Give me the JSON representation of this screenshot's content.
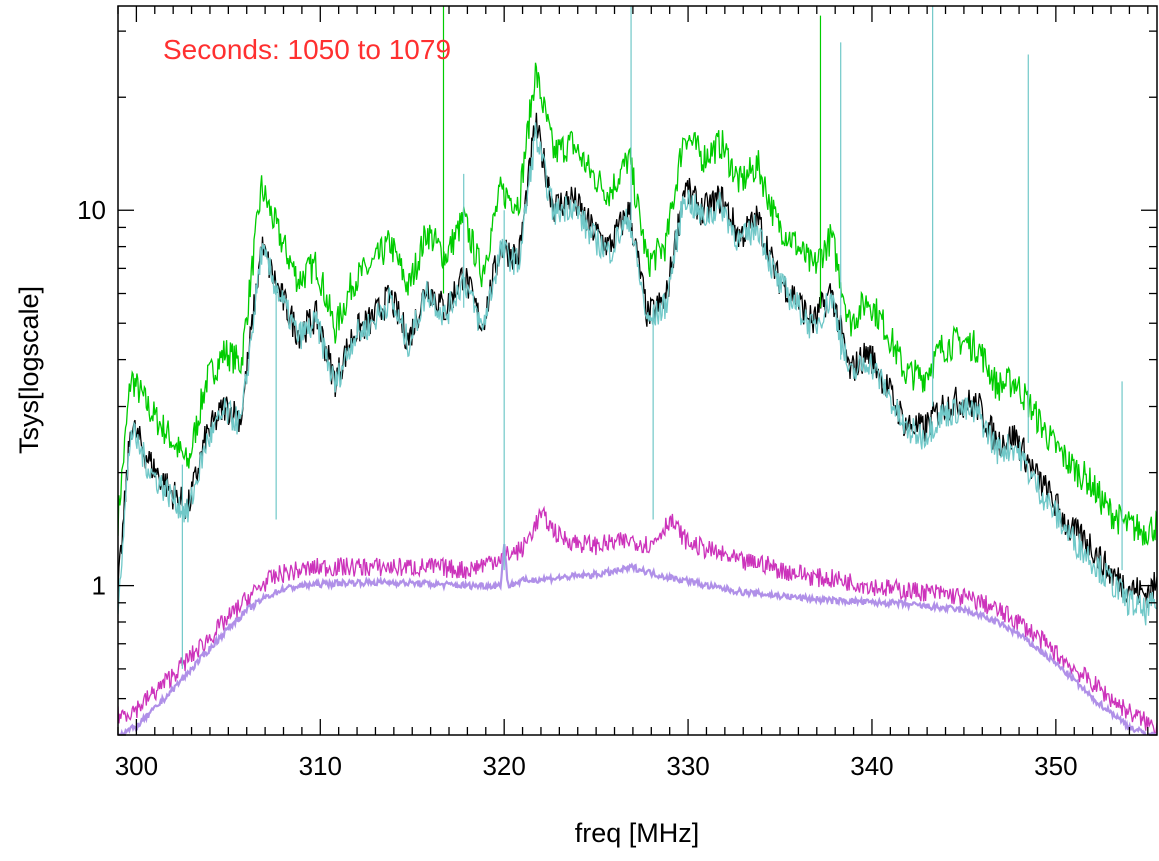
{
  "chart_data": {
    "type": "line",
    "xlabel": "freq [MHz]",
    "ylabel": "Tsys[logscale]",
    "annotation": "Seconds: 1050 to 1079",
    "annotation_color": "#ff3030",
    "xlim": [
      299,
      355.5
    ],
    "ylim": [
      0.4,
      35
    ],
    "yscale": "log",
    "grid": false,
    "x_ticks": [
      300,
      310,
      320,
      330,
      340,
      350
    ],
    "y_ticks": [
      1,
      10
    ],
    "series": [
      {
        "color": "#00cc00",
        "x": [
          299,
          299.7,
          300.8,
          301.8,
          302.8,
          303.8,
          304.8,
          305.7,
          306.8,
          307.8,
          308.8,
          309.8,
          310.8,
          311.8,
          312.8,
          313.8,
          314.8,
          315.8,
          316.8,
          317.8,
          318.8,
          319.8,
          320.8,
          321.7,
          322.7,
          323.7,
          324.7,
          325.7,
          326.8,
          327.8,
          328.8,
          329.8,
          330.8,
          331.8,
          332.8,
          333.8,
          334.8,
          335.8,
          336.8,
          337.8,
          338.8,
          339.8,
          340.8,
          341.8,
          342.8,
          343.8,
          344.8,
          345.8,
          346.8,
          347.8,
          348.8,
          349.8,
          350.8,
          351.8,
          352.8,
          353.8,
          354.8,
          355.5
        ],
        "y": [
          1.5,
          3.6,
          2.9,
          2.5,
          2.1,
          3.5,
          4.2,
          3.9,
          11.5,
          8.5,
          6.5,
          7.2,
          4.8,
          6.5,
          7.1,
          8.2,
          6.2,
          8.8,
          7.5,
          9.5,
          6.8,
          11.2,
          10.5,
          23.5,
          14.2,
          15.1,
          12.6,
          11.1,
          13.8,
          7.2,
          8.1,
          16.1,
          13.8,
          15.1,
          11.8,
          13.2,
          9.3,
          8.2,
          7.0,
          8.5,
          5.0,
          5.8,
          4.8,
          3.7,
          3.6,
          4.3,
          4.5,
          4.3,
          3.4,
          3.5,
          2.9,
          2.4,
          2.1,
          1.9,
          1.6,
          1.45,
          1.4,
          1.45
        ]
      },
      {
        "color": "#000000",
        "x": [
          299,
          299.7,
          300.8,
          301.8,
          302.8,
          303.8,
          304.8,
          305.7,
          306.8,
          307.8,
          308.8,
          309.8,
          310.8,
          311.8,
          312.8,
          313.8,
          314.8,
          315.8,
          316.8,
          317.8,
          318.8,
          319.8,
          320.8,
          321.7,
          322.7,
          323.7,
          324.7,
          325.7,
          326.8,
          327.8,
          328.8,
          329.8,
          330.8,
          331.8,
          332.8,
          333.8,
          334.8,
          335.8,
          336.8,
          337.8,
          338.8,
          339.8,
          340.8,
          341.8,
          342.8,
          343.8,
          344.8,
          345.8,
          346.8,
          347.8,
          348.8,
          349.8,
          350.8,
          351.8,
          352.8,
          353.8,
          354.8,
          355.5
        ],
        "y": [
          0.95,
          2.7,
          2.1,
          1.8,
          1.6,
          2.5,
          3.0,
          2.8,
          8.0,
          6.0,
          4.7,
          5.2,
          3.5,
          4.7,
          5.1,
          5.9,
          4.5,
          6.3,
          5.4,
          6.8,
          4.9,
          8.0,
          7.5,
          17.0,
          10.2,
          10.8,
          9.0,
          8.0,
          10.0,
          5.2,
          5.8,
          11.5,
          9.9,
          10.8,
          8.5,
          9.5,
          6.7,
          5.9,
          5.0,
          6.1,
          3.7,
          4.2,
          3.4,
          2.7,
          2.6,
          3.0,
          3.1,
          3.0,
          2.4,
          2.5,
          2.0,
          1.7,
          1.4,
          1.3,
          1.1,
          1.0,
          0.95,
          1.0
        ]
      },
      {
        "color": "#70c8c8",
        "x": [
          299,
          299.7,
          300.8,
          301.8,
          302.8,
          303.8,
          304.8,
          305.7,
          306.8,
          307.8,
          308.8,
          309.8,
          310.8,
          311.8,
          312.8,
          313.8,
          314.8,
          315.8,
          316.8,
          317.8,
          318.8,
          319.8,
          320.8,
          321.7,
          322.7,
          323.7,
          324.7,
          325.7,
          326.8,
          327.8,
          328.8,
          329.8,
          330.8,
          331.8,
          332.8,
          333.8,
          334.8,
          335.8,
          336.8,
          337.8,
          338.8,
          339.8,
          340.8,
          341.8,
          342.8,
          343.8,
          344.8,
          345.8,
          346.8,
          347.8,
          348.8,
          349.8,
          350.8,
          351.8,
          352.8,
          353.8,
          354.8,
          355.5
        ],
        "y": [
          0.9,
          2.6,
          2.0,
          1.75,
          1.55,
          2.4,
          2.9,
          2.7,
          7.8,
          5.9,
          4.6,
          5.0,
          3.4,
          4.6,
          5.0,
          5.8,
          4.4,
          6.1,
          5.2,
          6.6,
          4.8,
          7.8,
          7.2,
          16.0,
          9.8,
          10.4,
          8.6,
          7.7,
          9.6,
          5.0,
          5.6,
          11.0,
          9.5,
          10.3,
          8.2,
          9.1,
          6.5,
          5.7,
          4.8,
          5.9,
          3.6,
          4.0,
          3.3,
          2.6,
          2.5,
          2.85,
          2.95,
          2.85,
          2.3,
          2.35,
          1.9,
          1.6,
          1.35,
          1.2,
          1.05,
          0.92,
          0.85,
          0.9
        ]
      },
      {
        "color": "#cc33bb",
        "x": [
          299,
          300,
          301,
          302,
          303,
          304,
          305,
          306,
          307,
          308,
          309,
          310,
          312,
          314,
          316,
          318,
          319,
          320,
          321,
          322,
          323,
          324,
          325,
          326,
          327,
          328,
          329,
          330,
          331,
          332,
          333,
          334,
          335,
          336,
          337,
          338,
          339,
          340,
          341,
          342,
          343,
          344,
          345,
          346,
          347,
          348,
          349,
          350,
          351,
          352,
          353,
          354,
          355,
          355.5
        ],
        "y": [
          0.45,
          0.47,
          0.52,
          0.58,
          0.65,
          0.73,
          0.82,
          0.92,
          1.02,
          1.08,
          1.1,
          1.12,
          1.12,
          1.12,
          1.12,
          1.1,
          1.15,
          1.2,
          1.25,
          1.55,
          1.35,
          1.3,
          1.28,
          1.3,
          1.32,
          1.28,
          1.5,
          1.3,
          1.25,
          1.2,
          1.15,
          1.15,
          1.1,
          1.08,
          1.05,
          1.04,
          1.02,
          1.0,
          0.98,
          0.97,
          0.96,
          0.95,
          0.93,
          0.9,
          0.85,
          0.8,
          0.73,
          0.66,
          0.6,
          0.55,
          0.5,
          0.46,
          0.43,
          0.42
        ]
      },
      {
        "color": "#b090e8",
        "x": [
          299,
          300,
          301,
          302,
          303,
          304,
          305,
          306,
          307,
          308,
          309,
          310,
          312,
          314,
          316,
          318,
          319,
          319.8,
          320,
          320.2,
          321,
          322,
          323,
          324,
          325,
          326,
          327,
          328,
          329,
          330,
          331,
          332,
          333,
          334,
          335,
          336,
          337,
          338,
          339,
          340,
          341,
          342,
          343,
          344,
          345,
          346,
          347,
          348,
          349,
          350,
          351,
          352,
          353,
          354,
          355,
          355.5
        ],
        "y": [
          0.4,
          0.42,
          0.47,
          0.53,
          0.6,
          0.68,
          0.77,
          0.86,
          0.93,
          0.98,
          1.0,
          1.01,
          1.02,
          1.02,
          1.01,
          1.0,
          1.0,
          1.0,
          1.3,
          1.0,
          1.03,
          1.04,
          1.05,
          1.06,
          1.07,
          1.09,
          1.12,
          1.08,
          1.05,
          1.03,
          1.0,
          0.98,
          0.96,
          0.95,
          0.94,
          0.93,
          0.92,
          0.91,
          0.91,
          0.9,
          0.9,
          0.89,
          0.88,
          0.87,
          0.86,
          0.83,
          0.79,
          0.74,
          0.68,
          0.62,
          0.56,
          0.5,
          0.46,
          0.42,
          0.4,
          0.4
        ]
      }
    ],
    "spikes": [
      {
        "x": 302.5,
        "y_top": 0.6,
        "y_base": 2.1,
        "color": "#70c8c8"
      },
      {
        "x": 307.6,
        "y_top": 1.5,
        "y_base": 6.5,
        "color": "#70c8c8"
      },
      {
        "x": 316.7,
        "y_top": 35,
        "y_base": 6.0,
        "color": "#00cc00"
      },
      {
        "x": 317.8,
        "y_top": 12.5,
        "y_base": 5.5,
        "color": "#70c8c8"
      },
      {
        "x": 320.0,
        "y_top": 1.1,
        "y_base": 10.0,
        "color": "#70c8c8"
      },
      {
        "x": 326.9,
        "y_top": 35,
        "y_base": 9.0,
        "color": "#70c8c8"
      },
      {
        "x": 328.1,
        "y_top": 1.5,
        "y_base": 5.5,
        "color": "#70c8c8"
      },
      {
        "x": 337.2,
        "y_top": 33,
        "y_base": 5.5,
        "color": "#00cc00"
      },
      {
        "x": 338.3,
        "y_top": 28,
        "y_base": 4.0,
        "color": "#70c8c8"
      },
      {
        "x": 343.3,
        "y_top": 35,
        "y_base": 3.0,
        "color": "#70c8c8"
      },
      {
        "x": 348.5,
        "y_top": 26,
        "y_base": 2.4,
        "color": "#70c8c8"
      },
      {
        "x": 353.6,
        "y_top": 3.5,
        "y_base": 1.1,
        "color": "#70c8c8"
      }
    ]
  }
}
